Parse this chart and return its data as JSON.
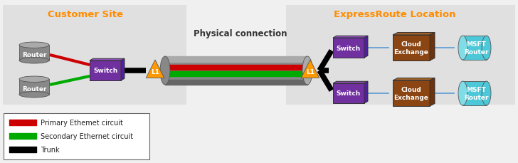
{
  "bg_color": "#f0f0f0",
  "panel_color": "#e0e0e0",
  "title_customer": "Customer Site",
  "title_expressroute": "ExpressRoute Location",
  "title_physical": "Physical connection",
  "legend_items": [
    {
      "label": "Primary Ethemet circuit",
      "color": "#cc0000"
    },
    {
      "label": "Secondary Ethernet circuit",
      "color": "#00aa00"
    },
    {
      "label": "Trunk",
      "color": "#000000"
    }
  ],
  "router_color": "#888888",
  "router_top_color": "#aaaaaa",
  "switch_color": "#7030a0",
  "cloud_color": "#8B4513",
  "cloud_top_color": "#a0622a",
  "cloud_right_color": "#6b3410",
  "msft_color": "#4dc8d8",
  "msft_light_color": "#80dde8",
  "l1_color": "#ff9900",
  "line_red": "#cc0000",
  "line_green": "#00aa00",
  "line_black": "#000000",
  "line_blue": "#5b9bd5",
  "cable_gray": "#888888",
  "cable_gray_light": "#aaaaaa",
  "cable_gray_dark": "#666666",
  "title_color": "#ff8c00",
  "phys_text_color": "#333333"
}
